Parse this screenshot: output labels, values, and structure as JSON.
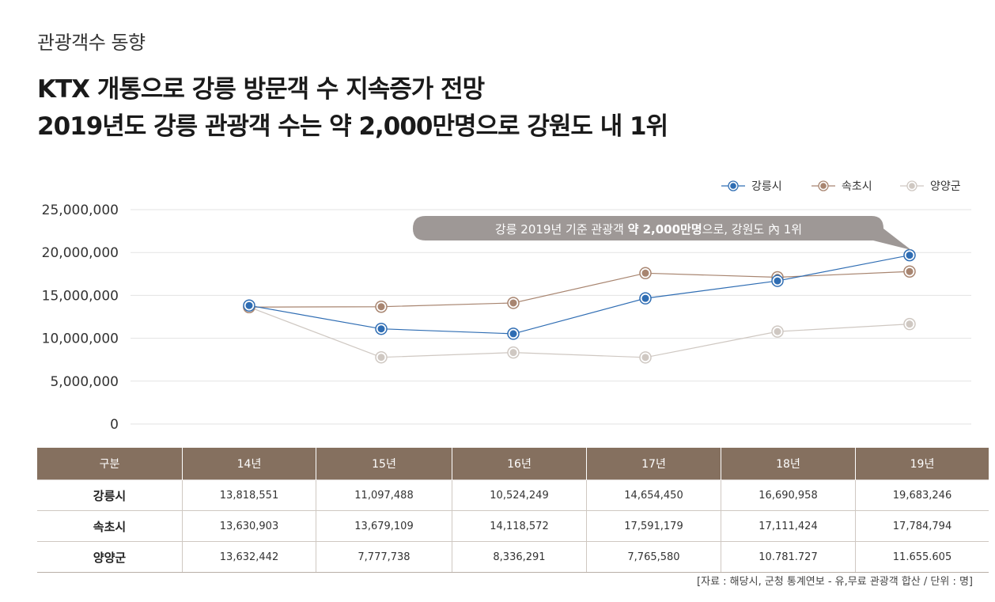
{
  "header": {
    "kicker": "관광객수 동향",
    "headline_line1": "KTX 개통으로 강릉 방문객 수 지속증가 전망",
    "headline_line2": "2019년도 강릉 관광객 수는 약 2,000만명으로 강원도 내 1위"
  },
  "chart_data": {
    "type": "line",
    "x": [
      "14년",
      "15년",
      "16년",
      "17년",
      "18년",
      "19년"
    ],
    "yticks": [
      "0",
      "5,000,000",
      "10,000,000",
      "15,000,000",
      "20,000,000",
      "25,000,000"
    ],
    "ylim": [
      0,
      25000000
    ],
    "grid": true,
    "legend_position": "top-right",
    "series": [
      {
        "name": "강릉시",
        "color": "#2f6db3",
        "values": [
          13818551,
          11097488,
          10524249,
          14654450,
          16690958,
          19683246
        ]
      },
      {
        "name": "속초시",
        "color": "#a88570",
        "values": [
          13630903,
          13679109,
          14118572,
          17591179,
          17111424,
          17784794
        ]
      },
      {
        "name": "양양군",
        "color": "#cfc8c2",
        "values": [
          13632442,
          7777738,
          8336291,
          7765580,
          10781727,
          11655605
        ]
      }
    ],
    "annotation": {
      "text_regular": "강릉 2019년 기준 관광객 ",
      "text_bold": "약 2,000만명",
      "text_tail": "으로, 강원도 內 1위",
      "color": "#9e9896"
    }
  },
  "table": {
    "headers": [
      "구분",
      "14년",
      "15년",
      "16년",
      "17년",
      "18년",
      "19년"
    ],
    "rows": [
      {
        "label": "강릉시",
        "cells": [
          "13,818,551",
          "11,097,488",
          "10,524,249",
          "14,654,450",
          "16,690,958",
          "19,683,246"
        ]
      },
      {
        "label": "속초시",
        "cells": [
          "13,630,903",
          "13,679,109",
          "14,118,572",
          "17,591,179",
          "17,111,424",
          "17,784,794"
        ]
      },
      {
        "label": "양양군",
        "cells": [
          "13,632,442",
          "7,777,738",
          "8,336,291",
          "7,765,580",
          "10.781.727",
          "11.655.605"
        ]
      }
    ],
    "header_color": "#85705f"
  },
  "source": "[자료 : 해당시, 군청 통계연보 - 유,무료 관광객 합산 / 단위 : 명]"
}
